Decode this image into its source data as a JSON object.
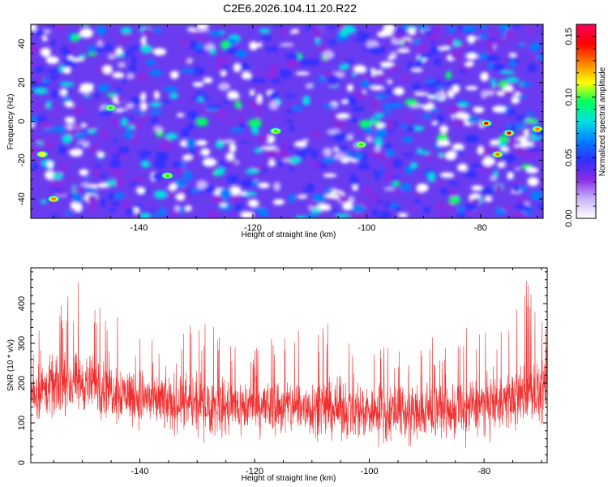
{
  "title": "C2E6.2026.104.11.20.R22",
  "chart_data": [
    {
      "type": "heatmap",
      "xlabel": "Height of straight line (km)",
      "ylabel": "Frequency (Hz)",
      "xlim": [
        -159,
        -69
      ],
      "ylim": [
        -50,
        50
      ],
      "xticks": [
        -140,
        -120,
        -100,
        -80
      ],
      "yticks": [
        -40,
        -20,
        0,
        20,
        40
      ],
      "colorbar": {
        "label": "Normalized spectral amplitude",
        "range": [
          0.0,
          0.16
        ],
        "ticks": [
          0.0,
          0.05,
          0.1,
          0.15
        ],
        "tick_labels": [
          "0.00",
          "0.05",
          "0.10",
          "0.15"
        ],
        "colors": [
          "#ffffff",
          "#c8b4ff",
          "#8a2be2",
          "#3030ff",
          "#0080ff",
          "#00e0e0",
          "#00ff60",
          "#ffff00",
          "#ff8000",
          "#ff0000",
          "#ff0060"
        ]
      },
      "hotspots": [
        {
          "x": -75,
          "y": -6,
          "value": 0.16
        },
        {
          "x": -79,
          "y": -1,
          "value": 0.15
        },
        {
          "x": -77,
          "y": -17,
          "value": 0.14
        },
        {
          "x": -70,
          "y": -4,
          "value": 0.14
        },
        {
          "x": -155,
          "y": -40,
          "value": 0.13
        },
        {
          "x": -157,
          "y": -17,
          "value": 0.12
        },
        {
          "x": -116,
          "y": -5,
          "value": 0.11
        },
        {
          "x": -101,
          "y": -12,
          "value": 0.1
        },
        {
          "x": -135,
          "y": -28,
          "value": 0.1
        },
        {
          "x": -145,
          "y": 7,
          "value": 0.1
        }
      ]
    },
    {
      "type": "line",
      "xlabel": "Height of straight line (km)",
      "ylabel": "SNR (10 * v/v)",
      "xlim": [
        -159,
        -69
      ],
      "ylim": [
        0,
        490
      ],
      "xticks": [
        -140,
        -120,
        -100,
        -80
      ],
      "yticks": [
        0,
        100,
        200,
        300,
        400
      ],
      "color": "#f03030",
      "envelope": [
        {
          "x": -159,
          "mean": 170,
          "max": 310
        },
        {
          "x": -155,
          "mean": 190,
          "max": 380
        },
        {
          "x": -150,
          "mean": 200,
          "max": 470
        },
        {
          "x": -145,
          "mean": 185,
          "max": 400
        },
        {
          "x": -140,
          "mean": 165,
          "max": 320
        },
        {
          "x": -135,
          "mean": 150,
          "max": 300
        },
        {
          "x": -130,
          "mean": 145,
          "max": 360
        },
        {
          "x": -125,
          "mean": 140,
          "max": 330
        },
        {
          "x": -120,
          "mean": 140,
          "max": 300
        },
        {
          "x": -115,
          "mean": 140,
          "max": 330
        },
        {
          "x": -110,
          "mean": 140,
          "max": 370
        },
        {
          "x": -105,
          "mean": 135,
          "max": 340
        },
        {
          "x": -100,
          "mean": 130,
          "max": 320
        },
        {
          "x": -95,
          "mean": 125,
          "max": 300
        },
        {
          "x": -90,
          "mean": 125,
          "max": 310
        },
        {
          "x": -85,
          "mean": 130,
          "max": 340
        },
        {
          "x": -80,
          "mean": 145,
          "max": 360
        },
        {
          "x": -75,
          "mean": 160,
          "max": 380
        },
        {
          "x": -72,
          "mean": 180,
          "max": 480
        },
        {
          "x": -69,
          "mean": 170,
          "max": 350
        }
      ]
    }
  ]
}
